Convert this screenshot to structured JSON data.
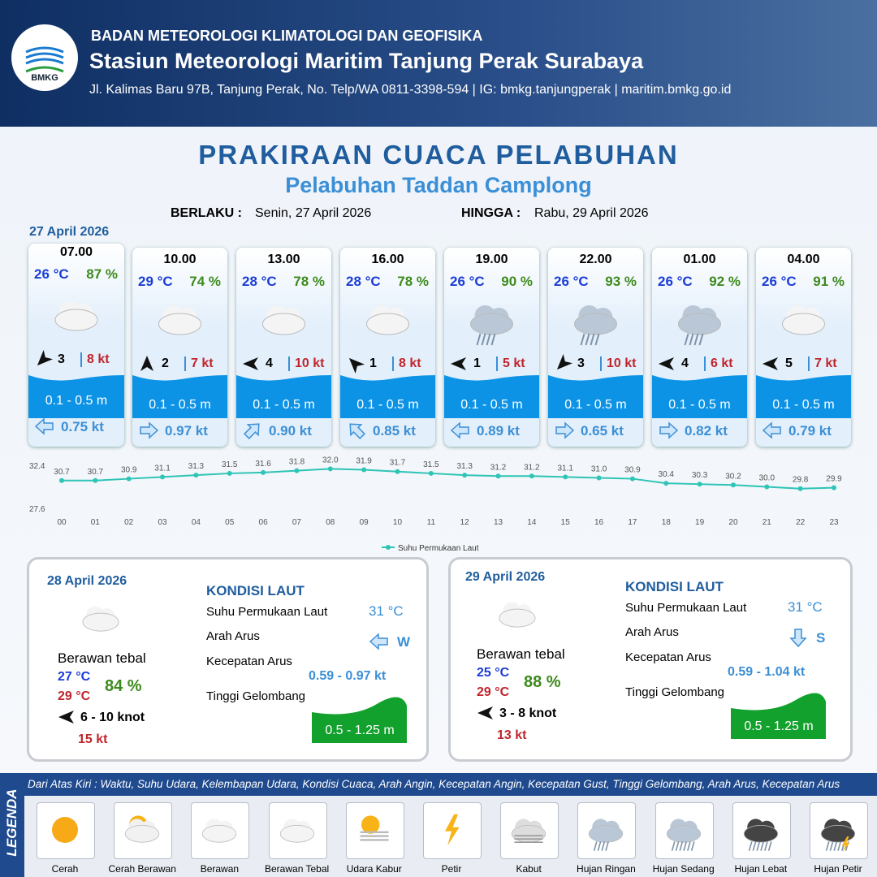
{
  "header": {
    "logo_text": "BMKG",
    "org": "BADAN METEOROLOGI KLIMATOLOGI DAN GEOFISIKA",
    "station": "Stasiun Meteorologi Maritim Tanjung Perak Surabaya",
    "address": "Jl. Kalimas Baru 97B, Tanjung Perak, No. Telp/WA 0811-3398-594 | IG: bmkg.tanjungperak | maritim.bmkg.go.id"
  },
  "title": "PRAKIRAAN CUACA PELABUHAN",
  "subtitle": "Pelabuhan Taddan Camplong",
  "validity": {
    "from_label": "BERLAKU :",
    "from": "Senin, 27 April 2026",
    "to_label": "HINGGA :",
    "to": "Rabu, 29 April 2026"
  },
  "day1": {
    "date": "27 April 2026",
    "forecasts": [
      {
        "time": "07.00",
        "temp": "26 °C",
        "humidity": "87 %",
        "icon": "Berawan Tebal",
        "wind_to": "SW",
        "wind": "3",
        "gust": "8 kt",
        "wave": "0.1 - 0.5 m",
        "current_to": "W",
        "current": "0.75 kt"
      },
      {
        "time": "10.00",
        "temp": "29 °C",
        "humidity": "74 %",
        "icon": "Berawan Tebal",
        "wind_to": "N",
        "wind": "2",
        "gust": "7 kt",
        "wave": "0.1 - 0.5 m",
        "current_to": "E",
        "current": "0.97 kt"
      },
      {
        "time": "13.00",
        "temp": "28 °C",
        "humidity": "78 %",
        "icon": "Berawan Tebal",
        "wind_to": "W",
        "wind": "4",
        "gust": "10 kt",
        "wave": "0.1 - 0.5 m",
        "current_to": "NE",
        "current": "0.90 kt"
      },
      {
        "time": "16.00",
        "temp": "28 °C",
        "humidity": "78 %",
        "icon": "Berawan Tebal",
        "wind_to": "NW",
        "wind": "1",
        "gust": "8 kt",
        "wave": "0.1 - 0.5 m",
        "current_to": "NW",
        "current": "0.85 kt"
      },
      {
        "time": "19.00",
        "temp": "26 °C",
        "humidity": "90 %",
        "icon": "Hujan Ringan",
        "wind_to": "W",
        "wind": "1",
        "gust": "5 kt",
        "wave": "0.1 - 0.5 m",
        "current_to": "W",
        "current": "0.89 kt"
      },
      {
        "time": "22.00",
        "temp": "26 °C",
        "humidity": "93 %",
        "icon": "Hujan Ringan",
        "wind_to": "SW",
        "wind": "3",
        "gust": "10 kt",
        "wave": "0.1 - 0.5 m",
        "current_to": "E",
        "current": "0.65 kt"
      },
      {
        "time": "01.00",
        "temp": "26 °C",
        "humidity": "92 %",
        "icon": "Hujan Ringan",
        "wind_to": "W",
        "wind": "4",
        "gust": "6 kt",
        "wave": "0.1 - 0.5 m",
        "current_to": "E",
        "current": "0.82 kt"
      },
      {
        "time": "04.00",
        "temp": "26 °C",
        "humidity": "91 %",
        "icon": "Berawan Tebal",
        "wind_to": "W",
        "wind": "5",
        "gust": "7 kt",
        "wave": "0.1 - 0.5 m",
        "current_to": "W",
        "current": "0.79 kt"
      }
    ]
  },
  "chart_data": {
    "type": "line",
    "categories": [
      "00",
      "01",
      "02",
      "03",
      "04",
      "05",
      "06",
      "07",
      "08",
      "09",
      "10",
      "11",
      "12",
      "13",
      "14",
      "15",
      "16",
      "17",
      "18",
      "19",
      "20",
      "21",
      "22",
      "23"
    ],
    "series": [
      {
        "name": "Suhu Permukaan Laut",
        "color": "#2ec4b6",
        "values": [
          30.7,
          30.7,
          30.9,
          31.1,
          31.3,
          31.5,
          31.6,
          31.8,
          32.0,
          31.9,
          31.7,
          31.5,
          31.3,
          31.2,
          31.2,
          31.1,
          31.0,
          30.9,
          30.4,
          30.3,
          30.2,
          30.0,
          29.8,
          29.9
        ],
        "value_labels": [
          "30.7",
          "30.7",
          "30.9",
          "31.1",
          "31.3",
          "31.5",
          "31.6",
          "31.8",
          "32.0",
          "31.9",
          "31.7",
          "31.5",
          "31.3",
          "31.2",
          "31.2",
          "31.1",
          "31.0",
          "30.9",
          "30.4",
          "30.3",
          "30.2",
          "30.0",
          "29.8",
          "29.9"
        ]
      }
    ],
    "ylim": [
      27.6,
      32.4
    ],
    "yticks": [
      27.6,
      32.4
    ],
    "legend": "bottom"
  },
  "days": [
    {
      "date": "28 April 2026",
      "icon": "Berawan Tebal",
      "condition": "Berawan tebal",
      "temp_min": "27 °C",
      "temp_max": "29 °C",
      "humidity": "84 %",
      "wind_to": "W",
      "wind": "6 - 10 knot",
      "gust": "15 kt",
      "sea_heading": "KONDISI LAUT",
      "sst_label": "Suhu Permukaan Laut",
      "sst": "31 °C",
      "dir_label": "Arah Arus",
      "current_dir": "W",
      "speed_label": "Kecepatan Arus",
      "speed": "0.59 - 0.97 kt",
      "wave_label": "Tinggi Gelombang",
      "wave": "0.5 - 1.25 m"
    },
    {
      "date": "29 April 2026",
      "icon": "Berawan Tebal",
      "condition": "Berawan tebal",
      "temp_min": "25 °C",
      "temp_max": "29 °C",
      "humidity": "88 %",
      "wind_to": "W",
      "wind": "3 - 8 knot",
      "gust": "13 kt",
      "sea_heading": "KONDISI LAUT",
      "sst_label": "Suhu Permukaan Laut",
      "sst": "31 °C",
      "dir_label": "Arah Arus",
      "current_dir": "S",
      "speed_label": "Kecepatan Arus",
      "speed": "0.59 - 1.04 kt",
      "wave_label": "Tinggi Gelombang",
      "wave": "0.5 - 1.25 m"
    }
  ],
  "legend": {
    "title": "LEGENDA",
    "description": "Dari Atas Kiri : Waktu, Suhu Udara, Kelembapan Udara, Kondisi Cuaca, Arah Angin, Kecepatan Angin, Kecepatan Gust, Tinggi Gelombang, Arah Arus, Kecepatan Arus",
    "items": [
      "Cerah",
      "Cerah Berawan",
      "Berawan",
      "Berawan Tebal",
      "Udara Kabur",
      "Petir",
      "Kabut",
      "Hujan Ringan",
      "Hujan Sedang",
      "Hujan Lebat",
      "Hujan Petir"
    ]
  }
}
